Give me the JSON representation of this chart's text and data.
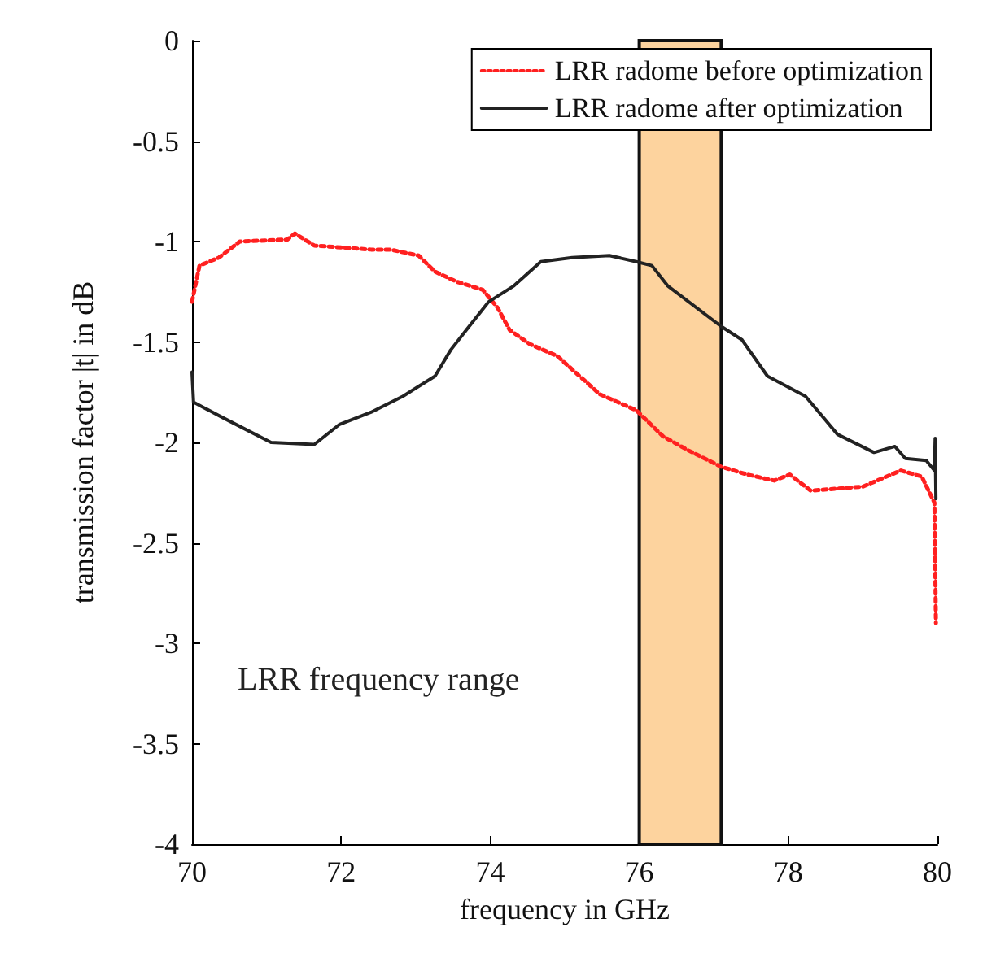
{
  "chart_data": {
    "type": "line",
    "xlabel": "frequency in GHz",
    "ylabel": "transmission factor |t| in dB",
    "xlim": [
      70,
      80
    ],
    "xticks": [
      70,
      72,
      74,
      76,
      78,
      80
    ],
    "ylim": [
      -4,
      0
    ],
    "yticks": [
      -4,
      -3.5,
      -3,
      -2.5,
      -2,
      -1.5,
      -1,
      -0.5,
      0
    ],
    "grid": false,
    "legend": "top right",
    "marker": "none",
    "bands": [
      {
        "axis": "x",
        "from": 76,
        "to": 77.1,
        "color": "#fdd39e"
      }
    ],
    "annotations": [
      "LRR frequency range"
    ],
    "series": [
      {
        "name": "LRR radome before optimization",
        "color": "#ff2020",
        "line_style": "dotted",
        "x": [
          70,
          70.1,
          70.36,
          70.64,
          71.28,
          71.38,
          71.64,
          72.4,
          72.66,
          73.04,
          73.26,
          73.55,
          73.9,
          74.1,
          74.26,
          74.53,
          74.9,
          75.17,
          75.47,
          75.96,
          76.32,
          76.66,
          77.09,
          77.45,
          77.81,
          78.02,
          78.3,
          79,
          79.51,
          79.79,
          79.96,
          79.98
        ],
        "values": [
          -1.3,
          -1.12,
          -1.08,
          -1.0,
          -0.99,
          -0.96,
          -1.02,
          -1.04,
          -1.04,
          -1.07,
          -1.15,
          -1.2,
          -1.24,
          -1.33,
          -1.44,
          -1.51,
          -1.57,
          -1.66,
          -1.76,
          -1.84,
          -1.97,
          -2.04,
          -2.12,
          -2.16,
          -2.19,
          -2.16,
          -2.24,
          -2.22,
          -2.14,
          -2.17,
          -2.3,
          -2.9
        ]
      },
      {
        "name": "LRR radome after optimization",
        "color": "#222222",
        "line_style": "solid",
        "x": [
          70,
          70.02,
          70.43,
          71.06,
          71.64,
          71.98,
          72.4,
          72.83,
          73.26,
          73.47,
          73.68,
          73.98,
          74.32,
          74.68,
          75.1,
          75.6,
          75.96,
          76.17,
          76.38,
          77.09,
          77.38,
          77.72,
          78.23,
          78.66,
          79.15,
          79.43,
          79.57,
          79.85,
          79.96,
          79.97,
          79.98
        ],
        "values": [
          -1.65,
          -1.8,
          -1.88,
          -2.0,
          -2.01,
          -1.91,
          -1.85,
          -1.77,
          -1.67,
          -1.54,
          -1.44,
          -1.3,
          -1.22,
          -1.1,
          -1.08,
          -1.07,
          -1.1,
          -1.12,
          -1.22,
          -1.42,
          -1.49,
          -1.67,
          -1.77,
          -1.96,
          -2.05,
          -2.02,
          -2.08,
          -2.09,
          -2.14,
          -1.98,
          -2.28
        ]
      }
    ]
  }
}
